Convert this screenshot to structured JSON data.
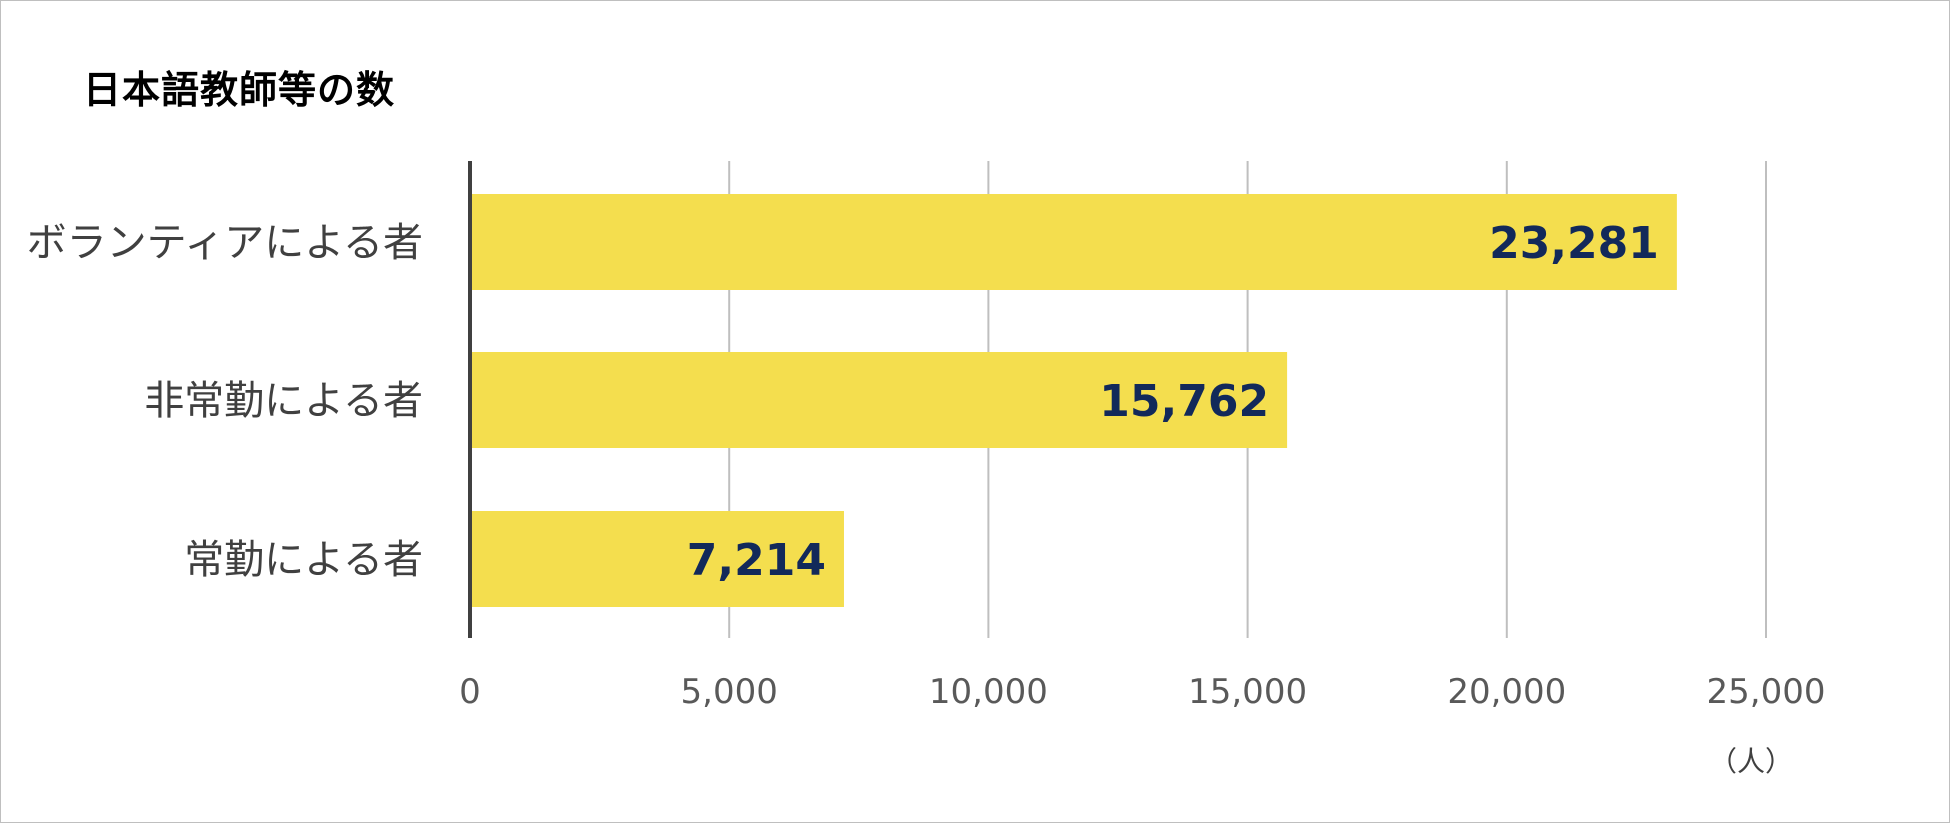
{
  "chart_data": {
    "type": "bar",
    "orientation": "horizontal",
    "title": "日本語教師等の数",
    "categories": [
      "ボランティアによる者",
      "非常勤による者",
      "常勤による者"
    ],
    "values": [
      23281,
      15762,
      7214
    ],
    "data_labels": [
      "23,281",
      "15,762",
      "7,214"
    ],
    "xlim": [
      0,
      25000
    ],
    "x_ticks": [
      0,
      5000,
      10000,
      15000,
      20000,
      25000
    ],
    "x_tick_labels": [
      "0",
      "5,000",
      "10,000",
      "15,000",
      "20,000",
      "25,000"
    ],
    "unit_label": "（人）",
    "grid": "vertical",
    "legend": "none",
    "colors": {
      "bar": "#f4de4e",
      "data_label": "#12295a",
      "grid": "#bfbfbf",
      "axis": "#404040"
    }
  }
}
